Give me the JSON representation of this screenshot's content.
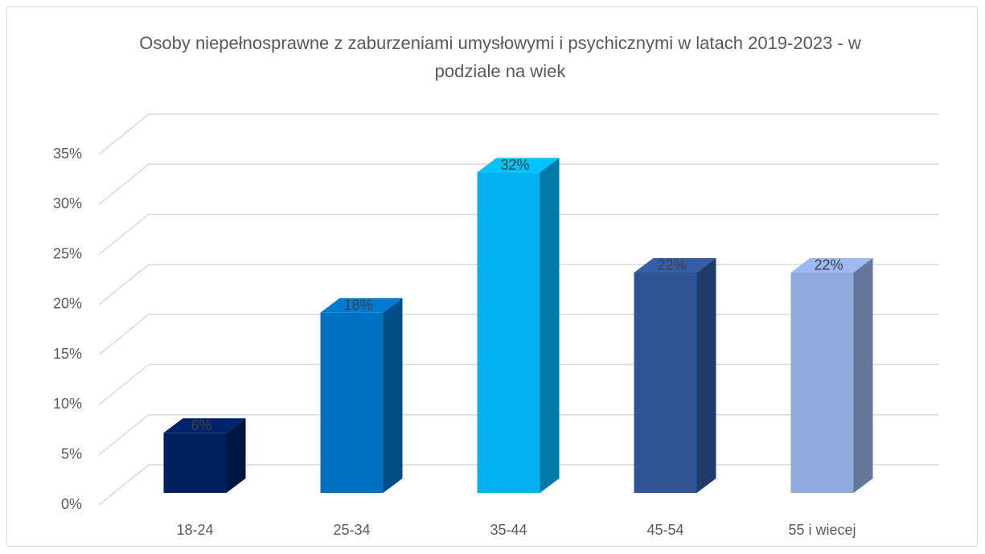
{
  "chart_data": {
    "type": "bar3d",
    "title": "Osoby niepełnosprawne z zaburzeniami umysłowymi i psychicznymi w latach 2019-2023 - w podziale na wiek",
    "categories": [
      "18-24",
      "25-34",
      "35-44",
      "45-54",
      "55 i wiecej"
    ],
    "values": [
      6,
      18,
      32,
      22,
      22
    ],
    "value_labels": [
      "6%",
      "18%",
      "32%",
      "22%",
      "22%"
    ],
    "colors": [
      "#002060",
      "#0070c0",
      "#00b0f0",
      "#2f5597",
      "#8faadc"
    ],
    "ylim": [
      0,
      35
    ],
    "yticks": [
      {
        "value": 0,
        "label": "0%"
      },
      {
        "value": 5,
        "label": "5%"
      },
      {
        "value": 10,
        "label": "10%"
      },
      {
        "value": 15,
        "label": "15%"
      },
      {
        "value": 20,
        "label": "20%"
      },
      {
        "value": 25,
        "label": "25%"
      },
      {
        "value": 30,
        "label": "30%"
      },
      {
        "value": 35,
        "label": "35%"
      }
    ],
    "grid": true
  }
}
